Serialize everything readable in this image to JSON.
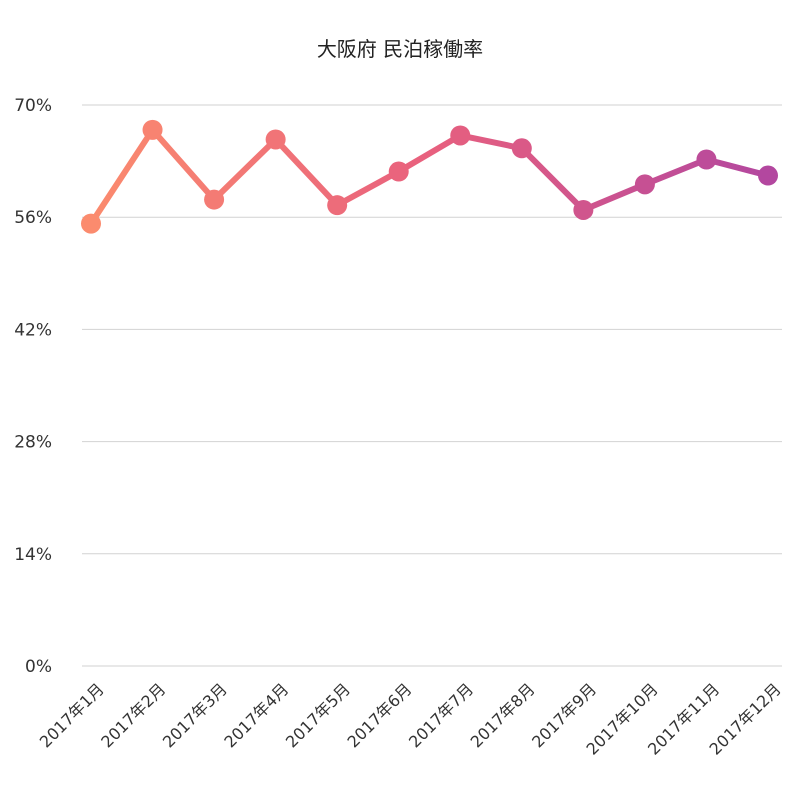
{
  "chart_data": {
    "type": "line",
    "title": "大阪府 民泊稼働率",
    "xlabel": "",
    "ylabel": "",
    "categories": [
      "2017年1月",
      "2017年2月",
      "2017年3月",
      "2017年4月",
      "2017年5月",
      "2017年6月",
      "2017年7月",
      "2017年8月",
      "2017年9月",
      "2017年10月",
      "2017年11月",
      "2017年12月"
    ],
    "series": [
      {
        "values": [
          55.2,
          66.9,
          58.2,
          65.7,
          57.5,
          61.7,
          66.2,
          64.6,
          56.9,
          60.1,
          63.2,
          61.2
        ]
      }
    ],
    "ylim": [
      0,
      70
    ],
    "yticks": [
      0,
      14,
      28,
      42,
      56,
      70
    ],
    "ytick_labels": [
      "0%",
      "14%",
      "28%",
      "42%",
      "56%",
      "70%"
    ],
    "grid": true,
    "legend": "none",
    "colors": {
      "gradient_start": "#fb8b6e",
      "gradient_mid": "#e8607e",
      "gradient_end": "#b3479f",
      "grid": "#d2d2d2"
    }
  }
}
